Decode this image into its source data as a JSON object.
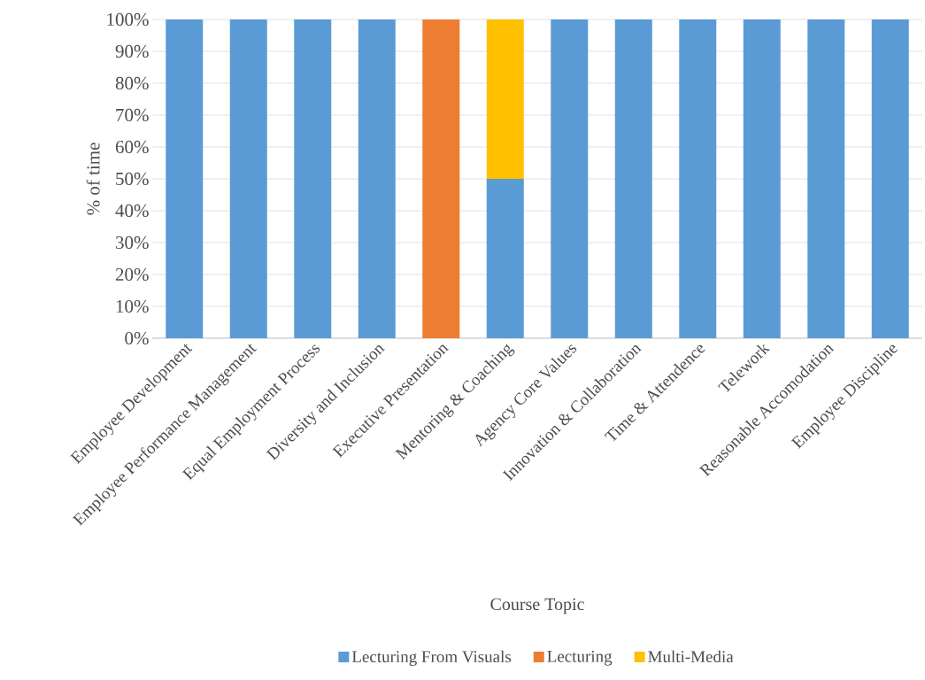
{
  "chart_data": {
    "type": "bar",
    "stacked": true,
    "xlabel": "Course Topic",
    "ylabel": "% of time",
    "categories": [
      "Employee Development",
      "Employee Performance Management",
      "Equal Employment Process",
      "Diversity and Inclusion",
      "Executive Presentation",
      "Mentoring & Coaching",
      "Agency Core Values",
      "Innovation & Collaboration",
      "Time & Attendence",
      "Telework",
      "Reasonable Accomodation",
      "Employee Discipline"
    ],
    "series": [
      {
        "name": "Lecturing From Visuals",
        "color": "#5b9bd5",
        "values": [
          100,
          100,
          100,
          100,
          0,
          50,
          100,
          100,
          100,
          100,
          100,
          100
        ]
      },
      {
        "name": "Lecturing",
        "color": "#ed7d31",
        "values": [
          0,
          0,
          0,
          0,
          100,
          0,
          0,
          0,
          0,
          0,
          0,
          0
        ]
      },
      {
        "name": "Multi-Media",
        "color": "#ffc000",
        "values": [
          0,
          0,
          0,
          0,
          0,
          50,
          0,
          0,
          0,
          0,
          0,
          0
        ]
      }
    ],
    "ylim": [
      0,
      100
    ],
    "yticks": [
      {
        "value": 0,
        "label": "0%"
      },
      {
        "value": 10,
        "label": "10%"
      },
      {
        "value": 20,
        "label": "20%"
      },
      {
        "value": 30,
        "label": "30%"
      },
      {
        "value": 40,
        "label": "40%"
      },
      {
        "value": 50,
        "label": "50%"
      },
      {
        "value": 60,
        "label": "60%"
      },
      {
        "value": 70,
        "label": "70%"
      },
      {
        "value": 80,
        "label": "80%"
      },
      {
        "value": 90,
        "label": "90%"
      },
      {
        "value": 100,
        "label": "100%"
      }
    ],
    "grid": "y",
    "legend": "bottom"
  }
}
